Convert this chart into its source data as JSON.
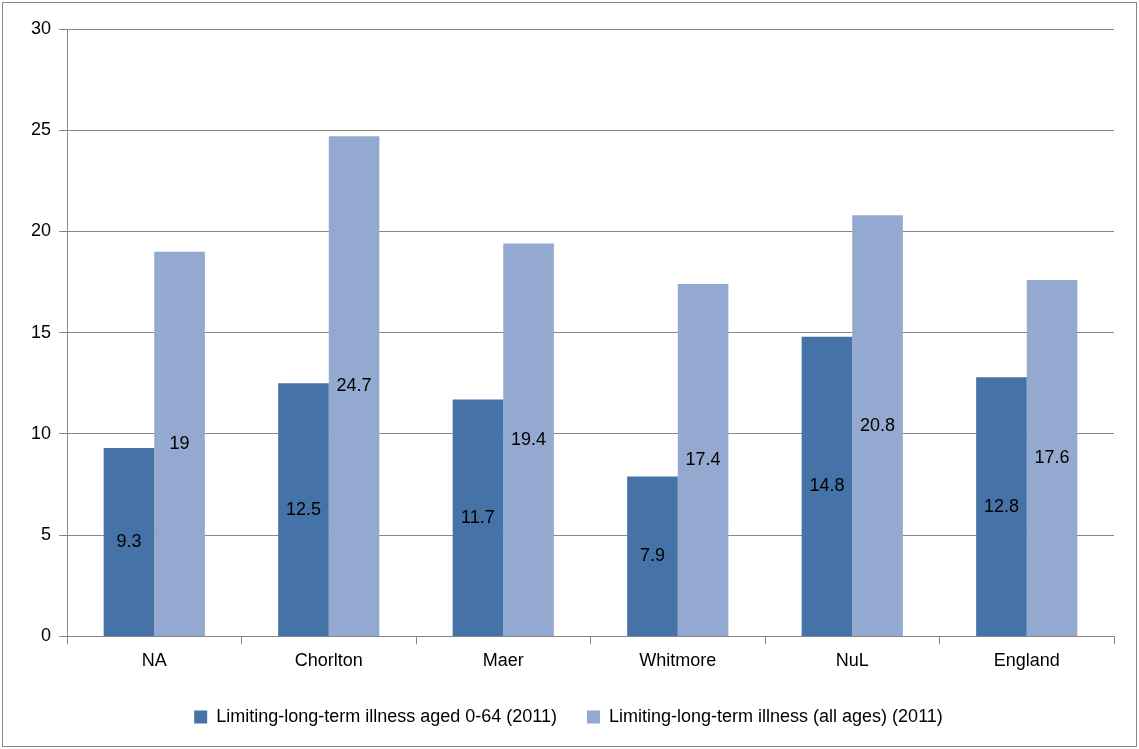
{
  "chart_data": {
    "type": "bar",
    "categories": [
      "NA",
      "Chorlton",
      "Maer",
      "Whitmore",
      "NuL",
      "England"
    ],
    "series": [
      {
        "name": "Limiting-long-term illness aged 0-64 (2011)",
        "color": "#4572a7",
        "values": [
          9.3,
          12.5,
          11.7,
          7.9,
          14.8,
          12.8
        ]
      },
      {
        "name": "Limiting-long-term illness (all ages) (2011)",
        "color": "#93a9cf",
        "values": [
          19,
          24.7,
          19.4,
          17.4,
          20.8,
          17.6
        ]
      }
    ],
    "ylim": [
      0,
      30
    ],
    "yticks": [
      0,
      5,
      10,
      15,
      20,
      25,
      30
    ],
    "grid": "y",
    "legend": "bottom",
    "data_labels": true
  }
}
